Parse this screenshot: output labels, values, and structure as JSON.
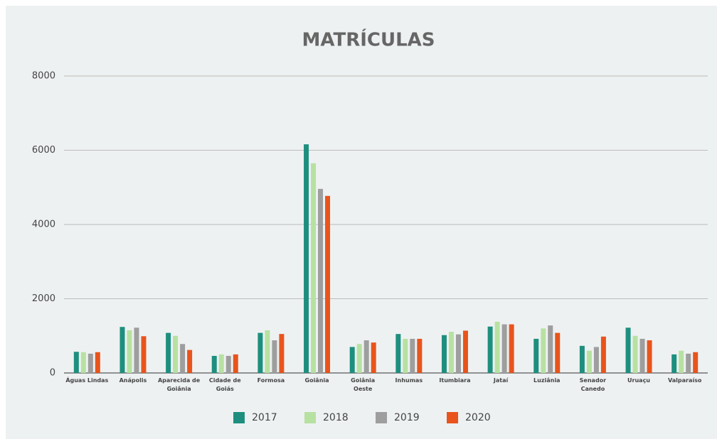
{
  "chart_data": {
    "type": "bar",
    "title": "MATRÍCULAS",
    "categories": [
      "Águas Lindas",
      "Anápolis",
      "Aparecida de Goiânia",
      "Cidade de Goiás",
      "Formosa",
      "Goiânia",
      "Goiânia Oeste",
      "Inhumas",
      "Itumbiara",
      "Jataí",
      "Luziânia",
      "Senador Canedo",
      "Uruaçu",
      "Valparaíso"
    ],
    "series": [
      {
        "name": "2017",
        "color": "#1e8f7e",
        "values": [
          570,
          1240,
          1080,
          460,
          1080,
          6160,
          700,
          1050,
          1020,
          1250,
          920,
          730,
          1220,
          500
        ]
      },
      {
        "name": "2018",
        "color": "#b7e1a1",
        "values": [
          560,
          1150,
          1000,
          500,
          1150,
          5650,
          780,
          920,
          1110,
          1380,
          1200,
          600,
          1000,
          600
        ]
      },
      {
        "name": "2019",
        "color": "#9e9e9e",
        "values": [
          520,
          1220,
          780,
          460,
          880,
          4960,
          880,
          920,
          1040,
          1310,
          1280,
          700,
          920,
          520
        ]
      },
      {
        "name": "2020",
        "color": "#e8541c",
        "values": [
          560,
          990,
          620,
          500,
          1050,
          4770,
          820,
          920,
          1140,
          1310,
          1080,
          980,
          880,
          560
        ]
      }
    ],
    "ylim": [
      0,
      8000
    ],
    "yticks": [
      0,
      2000,
      4000,
      6000,
      8000
    ],
    "grid": true,
    "legend": "bottom"
  }
}
